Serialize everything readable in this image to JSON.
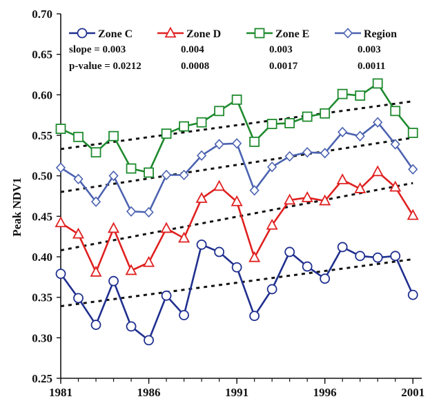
{
  "chart_data": {
    "type": "line",
    "title": "",
    "xlabel": "",
    "ylabel": "Peak NDV1",
    "xlim": [
      1981,
      2001.5
    ],
    "ylim": [
      0.25,
      0.7
    ],
    "grid": false,
    "legend_position": "top",
    "x_ticks": [
      "1981",
      "1986",
      "1991",
      "1996",
      "2001"
    ],
    "y_ticks": [
      "0.25",
      "0.30",
      "0.35",
      "0.40",
      "0.45",
      "0.50",
      "0.55",
      "0.60",
      "0.65",
      "0.70"
    ],
    "x": [
      1981,
      1982,
      1983,
      1984,
      1985,
      1986,
      1987,
      1988,
      1989,
      1990,
      1991,
      1992,
      1993,
      1994,
      1995,
      1996,
      1997,
      1998,
      1999,
      2000,
      2001
    ],
    "series": [
      {
        "name": "Zone C",
        "marker": "circle",
        "color": "#1f2f8f",
        "values": [
          0.379,
          0.349,
          0.316,
          0.37,
          0.314,
          0.297,
          0.352,
          0.328,
          0.415,
          0.406,
          0.387,
          0.327,
          0.36,
          0.406,
          0.388,
          0.373,
          0.412,
          0.401,
          0.399,
          0.401,
          0.353
        ],
        "trend": [
          0.339,
          0.397
        ]
      },
      {
        "name": "Zone D",
        "marker": "triangle",
        "color": "#e02020",
        "values": [
          0.442,
          0.428,
          0.381,
          0.435,
          0.383,
          0.393,
          0.435,
          0.423,
          0.472,
          0.487,
          0.468,
          0.399,
          0.439,
          0.47,
          0.473,
          0.469,
          0.495,
          0.484,
          0.505,
          0.486,
          0.451
        ],
        "trend": [
          0.408,
          0.491
        ]
      },
      {
        "name": "Zone E",
        "marker": "square",
        "color": "#1e8a2e",
        "values": [
          0.558,
          0.548,
          0.529,
          0.549,
          0.509,
          0.504,
          0.552,
          0.561,
          0.566,
          0.58,
          0.594,
          0.542,
          0.564,
          0.565,
          0.573,
          0.577,
          0.601,
          0.599,
          0.614,
          0.58,
          0.553
        ],
        "trend": [
          0.533,
          0.592
        ]
      },
      {
        "name": "Region",
        "marker": "diamond",
        "color": "#4b62b0",
        "values": [
          0.51,
          0.496,
          0.468,
          0.5,
          0.456,
          0.455,
          0.501,
          0.501,
          0.525,
          0.539,
          0.54,
          0.482,
          0.511,
          0.524,
          0.529,
          0.528,
          0.554,
          0.549,
          0.566,
          0.539,
          0.508
        ],
        "trend": [
          0.48,
          0.547
        ]
      }
    ],
    "stats": {
      "slope_label": "slope   = ",
      "pvalue_label": "p-value = ",
      "slopes": [
        "0.003",
        "0.004",
        "0.003",
        "0.003"
      ],
      "pvalues": [
        "0.0212",
        "0.0008",
        "0.0017",
        "0.0011"
      ]
    }
  }
}
